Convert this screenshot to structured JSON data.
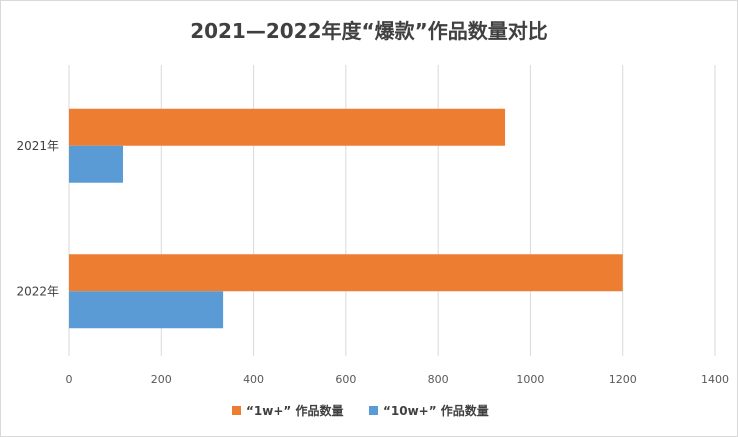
{
  "chart_data": {
    "type": "bar",
    "orientation": "horizontal",
    "title": "2021—2022年度“爆款”作品数量对比",
    "categories": [
      "2021年",
      "2022年"
    ],
    "series": [
      {
        "name": "“1w+” 作品数量",
        "color": "#ED7D31",
        "values": [
          945,
          1200
        ]
      },
      {
        "name": "“10w+” 作品数量",
        "color": "#5B9BD5",
        "values": [
          117,
          334
        ]
      }
    ],
    "xlim": [
      0,
      1400
    ],
    "xticks": [
      "0",
      "200",
      "400",
      "600",
      "800",
      "1000",
      "1200",
      "1400"
    ],
    "grid": true,
    "legend_position": "bottom"
  }
}
